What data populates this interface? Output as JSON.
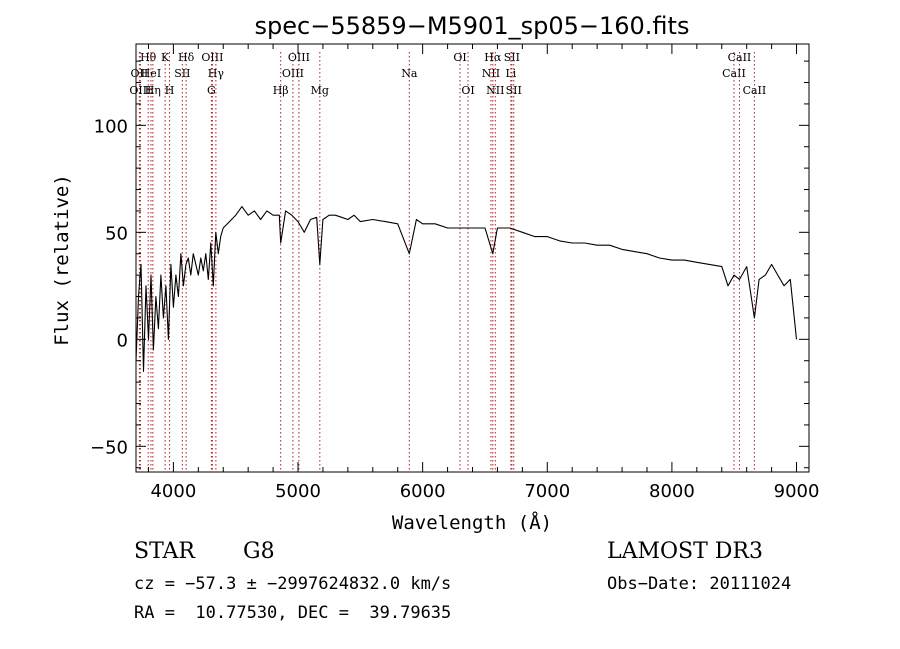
{
  "chart_data": {
    "type": "line",
    "title": "spec−55859−M5901_sp05−160.fits",
    "xlabel": "Wavelength (Å)",
    "ylabel": "Flux (relative)",
    "xlim": [
      3700,
      9100
    ],
    "ylim": [
      -62,
      138
    ],
    "x_ticks": [
      4000,
      5000,
      6000,
      7000,
      8000,
      9000
    ],
    "y_ticks": [
      -50,
      0,
      50,
      100
    ],
    "grid": false,
    "line_color": "#000000",
    "marker_color": "#b22222",
    "series": [
      {
        "x": [
          3700,
          3720,
          3740,
          3760,
          3780,
          3800,
          3820,
          3840,
          3860,
          3880,
          3900,
          3920,
          3940,
          3960,
          3980,
          4000,
          4020,
          4040,
          4060,
          4080,
          4100,
          4120,
          4140,
          4160,
          4180,
          4200,
          4220,
          4240,
          4260,
          4280,
          4300,
          4320,
          4340,
          4360,
          4380,
          4400,
          4450,
          4500,
          4550,
          4600,
          4650,
          4700,
          4750,
          4800,
          4850,
          4861,
          4900,
          4950,
          5000,
          5050,
          5100,
          5150,
          5175,
          5200,
          5250,
          5300,
          5350,
          5400,
          5450,
          5500,
          5600,
          5700,
          5800,
          5893,
          5950,
          6000,
          6100,
          6200,
          6300,
          6400,
          6500,
          6563,
          6600,
          6700,
          6800,
          6900,
          7000,
          7100,
          7200,
          7300,
          7400,
          7500,
          7600,
          7700,
          7800,
          7900,
          8000,
          8100,
          8200,
          8300,
          8400,
          8450,
          8498,
          8542,
          8600,
          8662,
          8700,
          8750,
          8800,
          8850,
          8900,
          8950,
          9000
        ],
        "y": [
          -10,
          20,
          35,
          -15,
          25,
          0,
          30,
          -5,
          20,
          5,
          30,
          10,
          25,
          0,
          35,
          15,
          30,
          20,
          40,
          25,
          35,
          38,
          30,
          40,
          35,
          30,
          38,
          32,
          40,
          28,
          45,
          25,
          50,
          40,
          48,
          52,
          55,
          58,
          62,
          58,
          60,
          56,
          60,
          58,
          58,
          45,
          60,
          58,
          55,
          50,
          56,
          57,
          35,
          56,
          58,
          58,
          57,
          56,
          58,
          55,
          56,
          55,
          54,
          40,
          56,
          54,
          54,
          52,
          52,
          52,
          52,
          40,
          52,
          52,
          50,
          48,
          48,
          46,
          45,
          45,
          44,
          44,
          42,
          41,
          40,
          38,
          37,
          37,
          36,
          35,
          34,
          25,
          30,
          28,
          34,
          10,
          28,
          30,
          35,
          30,
          25,
          28,
          0
        ]
      }
    ],
    "line_markers": [
      {
        "label": "OII",
        "x": 3727,
        "row": 2
      },
      {
        "label": "OIII",
        "x": 3735,
        "row": 3
      },
      {
        "label": "Hθ",
        "x": 3798,
        "row": 1
      },
      {
        "label": "HeI",
        "x": 3820,
        "row": 2
      },
      {
        "label": "Hη",
        "x": 3835,
        "row": 3
      },
      {
        "label": "K",
        "x": 3934,
        "row": 1
      },
      {
        "label": "H",
        "x": 3969,
        "row": 3
      },
      {
        "label": "SII",
        "x": 4072,
        "row": 2
      },
      {
        "label": "Hδ",
        "x": 4102,
        "row": 1
      },
      {
        "label": "OIII",
        "x": 4313,
        "row": 1
      },
      {
        "label": "G",
        "x": 4305,
        "row": 3
      },
      {
        "label": "Hγ",
        "x": 4341,
        "row": 2
      },
      {
        "label": "Hβ",
        "x": 4861,
        "row": 3
      },
      {
        "label": "OIII",
        "x": 4959,
        "row": 2
      },
      {
        "label": "OIII",
        "x": 5007,
        "row": 1
      },
      {
        "label": "Mg",
        "x": 5175,
        "row": 3
      },
      {
        "label": "Na",
        "x": 5893,
        "row": 2
      },
      {
        "label": "OI",
        "x": 6300,
        "row": 1
      },
      {
        "label": "OI",
        "x": 6364,
        "row": 3
      },
      {
        "label": "NII",
        "x": 6548,
        "row": 2
      },
      {
        "label": "Hα",
        "x": 6563,
        "row": 1
      },
      {
        "label": "NII",
        "x": 6583,
        "row": 3
      },
      {
        "label": "Li",
        "x": 6708,
        "row": 2
      },
      {
        "label": "SII",
        "x": 6716,
        "row": 1
      },
      {
        "label": "SII",
        "x": 6731,
        "row": 3
      },
      {
        "label": "CaII",
        "x": 8498,
        "row": 2
      },
      {
        "label": "CaII",
        "x": 8542,
        "row": 1
      },
      {
        "label": "CaII",
        "x": 8662,
        "row": 3
      }
    ]
  },
  "info": {
    "object_class": "STAR",
    "subclass": "G8",
    "survey": "LAMOST DR3",
    "redshift_line": "cz = −57.3 ± −2997624832.0 km/s",
    "obs_date_line": "Obs−Date: 20111024",
    "coords_line": "RA =  10.77530, DEC =  39.79635"
  }
}
